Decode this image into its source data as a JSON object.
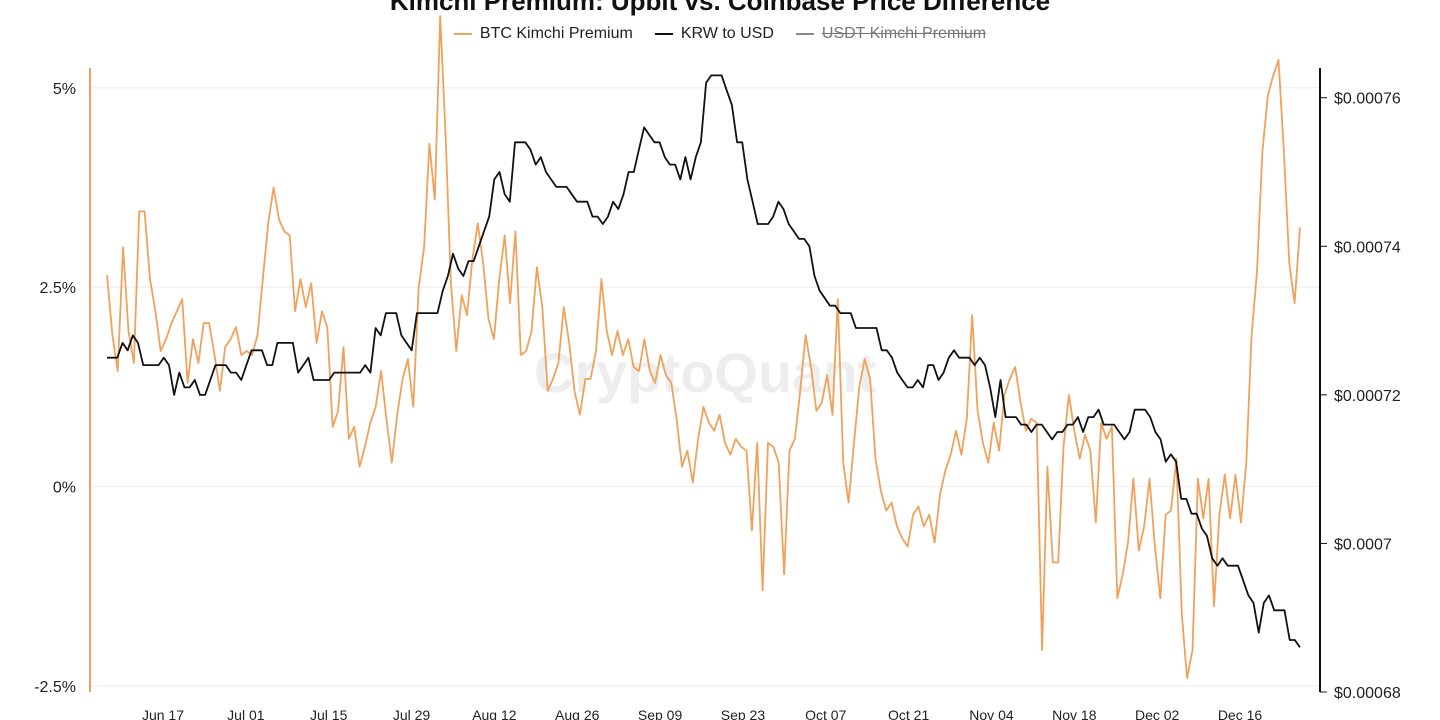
{
  "chart_data": {
    "type": "line",
    "title": "Kimchi Premium: Upbit vs. Coinbase Price Difference",
    "watermark": "CryptoQuant",
    "legend_position": "top-center",
    "grid": true,
    "x_labels": [
      "Jun 17",
      "Jul 01",
      "Jul 15",
      "Jul 29",
      "Aug 12",
      "Aug 26",
      "Sep 09",
      "Sep 23",
      "Oct 07",
      "Oct 21",
      "Nov 04",
      "Nov 18",
      "Dec 02",
      "Dec 16"
    ],
    "y_left": {
      "ticks": [
        -2.5,
        0,
        2.5,
        5
      ],
      "tick_labels": [
        "-2.5%",
        "0%",
        "2.5%",
        "5%"
      ],
      "range": [
        -2.8,
        6.0
      ],
      "color": "#f0a15a"
    },
    "y_right": {
      "ticks": [
        0.00068,
        0.0007,
        0.00072,
        0.00074,
        0.00076
      ],
      "tick_labels": [
        "$0.00068",
        "$0.0007",
        "$0.00072",
        "$0.00074",
        "$0.00076"
      ],
      "range": [
        0.00068,
        0.000764
      ],
      "color": "#111111"
    },
    "series": [
      {
        "name": "BTC Kimchi Premium",
        "axis": "left",
        "color": "#f0a15a",
        "visible": true,
        "values": [
          2.65,
          1.9,
          1.45,
          3.0,
          1.95,
          1.55,
          3.45,
          3.45,
          2.6,
          2.2,
          1.7,
          1.85,
          2.05,
          2.2,
          2.35,
          1.3,
          1.85,
          1.55,
          2.05,
          2.05,
          1.65,
          1.2,
          1.75,
          1.85,
          2.0,
          1.65,
          1.7,
          1.65,
          1.9,
          2.6,
          3.3,
          3.75,
          3.35,
          3.2,
          3.15,
          2.2,
          2.6,
          2.25,
          2.55,
          1.8,
          2.2,
          2.0,
          0.75,
          0.95,
          1.75,
          0.6,
          0.75,
          0.25,
          0.5,
          0.8,
          1.0,
          1.45,
          0.85,
          0.3,
          0.9,
          1.35,
          1.6,
          1.0,
          2.5,
          3.0,
          4.3,
          3.6,
          5.9,
          4.4,
          2.55,
          1.7,
          2.4,
          2.15,
          2.85,
          3.3,
          2.8,
          2.1,
          1.85,
          2.6,
          3.15,
          2.3,
          3.2,
          1.65,
          1.7,
          1.95,
          2.75,
          2.25,
          1.2,
          1.35,
          1.55,
          2.25,
          1.8,
          1.2,
          0.9,
          1.35,
          1.35,
          1.7,
          2.6,
          1.95,
          1.65,
          1.95,
          1.65,
          1.85,
          1.5,
          1.45,
          1.85,
          1.45,
          1.3,
          1.65,
          1.4,
          1.3,
          0.85,
          0.25,
          0.45,
          0.05,
          0.6,
          1.0,
          0.8,
          0.7,
          0.9,
          0.55,
          0.4,
          0.6,
          0.5,
          0.45,
          -0.55,
          0.55,
          -1.3,
          0.55,
          0.5,
          0.3,
          -1.1,
          0.45,
          0.6,
          1.2,
          1.9,
          1.5,
          0.95,
          1.05,
          1.4,
          0.9,
          2.35,
          0.3,
          -0.2,
          0.55,
          1.25,
          1.6,
          1.35,
          0.35,
          -0.05,
          -0.3,
          -0.2,
          -0.5,
          -0.65,
          -0.75,
          -0.35,
          -0.25,
          -0.5,
          -0.35,
          -0.7,
          -0.1,
          0.2,
          0.4,
          0.7,
          0.4,
          0.85,
          2.15,
          0.95,
          0.55,
          0.3,
          0.8,
          0.45,
          1.15,
          1.35,
          1.5,
          1.05,
          0.7,
          0.85,
          0.8,
          -2.05,
          0.25,
          -0.95,
          -0.95,
          0.5,
          1.15,
          0.7,
          0.35,
          0.65,
          0.45,
          -0.45,
          0.8,
          0.6,
          0.75,
          -1.4,
          -1.1,
          -0.7,
          0.1,
          -0.8,
          -0.5,
          0.1,
          -0.75,
          -1.4,
          -0.35,
          -0.3,
          0.35,
          -1.6,
          -2.4,
          -2.05,
          0.1,
          -0.4,
          0.1,
          -1.5,
          -0.35,
          0.15,
          -0.4,
          0.15,
          -0.45,
          0.3,
          1.9,
          2.7,
          4.2,
          4.9,
          5.15,
          5.35,
          4.2,
          2.8,
          2.3,
          3.25
        ]
      },
      {
        "name": "KRW to USD",
        "axis": "right",
        "color": "#111111",
        "visible": true,
        "values": [
          0.000725,
          0.000725,
          0.000725,
          0.000727,
          0.000726,
          0.000728,
          0.000727,
          0.000724,
          0.000724,
          0.000724,
          0.000724,
          0.000725,
          0.000724,
          0.00072,
          0.000723,
          0.000721,
          0.000721,
          0.000722,
          0.00072,
          0.00072,
          0.000722,
          0.000724,
          0.000724,
          0.000724,
          0.000723,
          0.000723,
          0.000722,
          0.000724,
          0.000726,
          0.000726,
          0.000726,
          0.000724,
          0.000724,
          0.000727,
          0.000727,
          0.000727,
          0.000727,
          0.000723,
          0.000724,
          0.000725,
          0.000722,
          0.000722,
          0.000722,
          0.000722,
          0.000723,
          0.000723,
          0.000723,
          0.000723,
          0.000723,
          0.000723,
          0.000724,
          0.000723,
          0.000729,
          0.000728,
          0.000731,
          0.000731,
          0.000731,
          0.000728,
          0.000727,
          0.000726,
          0.000731,
          0.000731,
          0.000731,
          0.000731,
          0.000731,
          0.000734,
          0.000736,
          0.000739,
          0.000737,
          0.000736,
          0.000738,
          0.000738,
          0.00074,
          0.000742,
          0.000744,
          0.000749,
          0.00075,
          0.000747,
          0.000746,
          0.000754,
          0.000754,
          0.000754,
          0.000753,
          0.000751,
          0.000752,
          0.00075,
          0.000749,
          0.000748,
          0.000748,
          0.000748,
          0.000747,
          0.000746,
          0.000746,
          0.000746,
          0.000744,
          0.000744,
          0.000743,
          0.000744,
          0.000746,
          0.000745,
          0.000747,
          0.00075,
          0.00075,
          0.000753,
          0.000756,
          0.000755,
          0.000754,
          0.000754,
          0.000752,
          0.000751,
          0.000751,
          0.000749,
          0.000752,
          0.000749,
          0.000752,
          0.000754,
          0.000762,
          0.000763,
          0.000763,
          0.000763,
          0.000761,
          0.000759,
          0.000754,
          0.000754,
          0.000749,
          0.000746,
          0.000743,
          0.000743,
          0.000743,
          0.000744,
          0.000746,
          0.000745,
          0.000743,
          0.000742,
          0.000741,
          0.000741,
          0.00074,
          0.000736,
          0.000734,
          0.000733,
          0.000732,
          0.000732,
          0.000731,
          0.000731,
          0.000731,
          0.000729,
          0.000729,
          0.000729,
          0.000729,
          0.000729,
          0.000726,
          0.000726,
          0.000725,
          0.000723,
          0.000722,
          0.000721,
          0.000721,
          0.000722,
          0.000721,
          0.000724,
          0.000724,
          0.000722,
          0.000723,
          0.000725,
          0.000726,
          0.000725,
          0.000725,
          0.000725,
          0.000724,
          0.000725,
          0.000724,
          0.000721,
          0.000717,
          0.000722,
          0.000717,
          0.000717,
          0.000717,
          0.000716,
          0.000716,
          0.000715,
          0.000716,
          0.000716,
          0.000715,
          0.000714,
          0.000715,
          0.000715,
          0.000716,
          0.000716,
          0.000717,
          0.000715,
          0.000717,
          0.000717,
          0.000718,
          0.000716,
          0.000716,
          0.000716,
          0.000715,
          0.000714,
          0.000715,
          0.000718,
          0.000718,
          0.000718,
          0.000717,
          0.000715,
          0.000714,
          0.000711,
          0.000712,
          0.000711,
          0.000706,
          0.000706,
          0.000704,
          0.000704,
          0.000702,
          0.000701,
          0.000698,
          0.000697,
          0.000698,
          0.000697,
          0.000697,
          0.000697,
          0.000695,
          0.000693,
          0.000692,
          0.000688,
          0.000692,
          0.000693,
          0.000691,
          0.000691,
          0.000691,
          0.000687,
          0.000687,
          0.000686
        ]
      },
      {
        "name": "USDT Kimchi Premium",
        "axis": "left",
        "color": "#8a8a8a",
        "visible": false,
        "values": []
      }
    ]
  }
}
